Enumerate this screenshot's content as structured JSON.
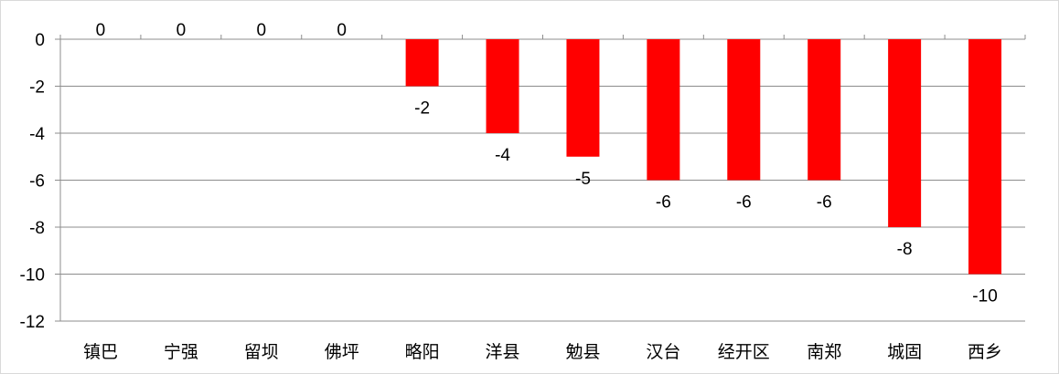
{
  "chart_data": {
    "type": "bar",
    "categories": [
      "镇巴",
      "宁强",
      "留坝",
      "佛坪",
      "略阳",
      "洋县",
      "勉县",
      "汉台",
      "经开区",
      "南郑",
      "城固",
      "西乡"
    ],
    "values": [
      0,
      0,
      0,
      0,
      -2,
      -4,
      -5,
      -6,
      -6,
      -6,
      -8,
      -10
    ],
    "data_labels": [
      "0",
      "0",
      "0",
      "0",
      "-2",
      "-4",
      "-5",
      "-6",
      "-6",
      "-6",
      "-8",
      "-10"
    ],
    "yticks": [
      0,
      -2,
      -4,
      -6,
      -8,
      -10,
      -12
    ],
    "ytick_labels": [
      "0",
      "-2",
      "-4",
      "-6",
      "-8",
      "-10",
      "-12"
    ],
    "ylim": [
      -12,
      0
    ],
    "grid": true,
    "bar_color": "#ff0000",
    "grid_color": "#8c8c8c",
    "title": "",
    "xlabel": "",
    "ylabel": ""
  }
}
